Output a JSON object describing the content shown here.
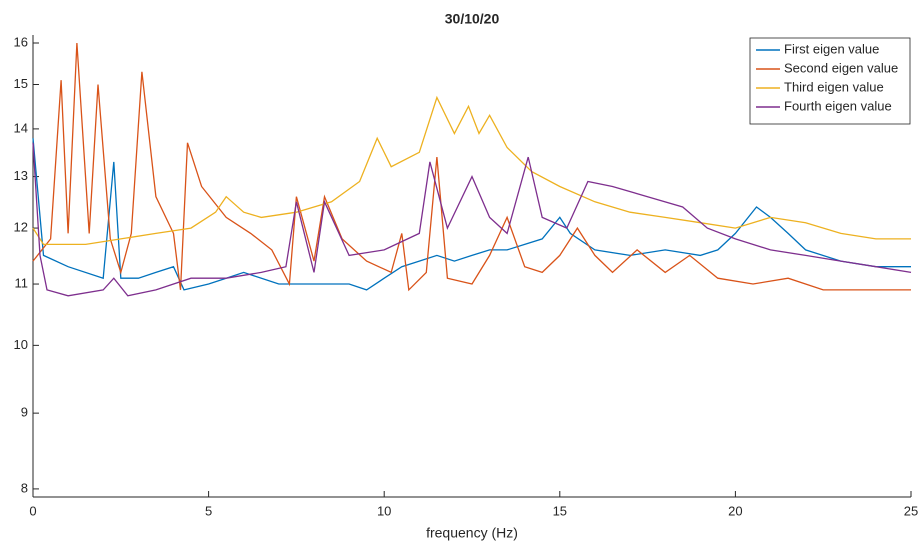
{
  "chart_data": {
    "type": "line",
    "title": "30/10/20",
    "x_label": "frequency (Hz)",
    "xlim": [
      0,
      25
    ],
    "xticks": [
      0,
      5,
      10,
      15,
      20,
      25
    ],
    "ylim": [
      7.9,
      16.2
    ],
    "yticks": [
      8,
      9,
      10,
      11,
      12,
      13,
      14,
      15,
      16
    ],
    "y_scale": "log",
    "legend": "northeast",
    "series": [
      {
        "name": "First eigen value",
        "color": "#0072bd",
        "x": [
          0,
          0.3,
          1,
          2,
          2.3,
          2.5,
          3,
          3.5,
          4,
          4.3,
          5,
          5.5,
          6,
          7,
          8,
          9,
          9.5,
          10,
          10.5,
          11,
          11.5,
          12,
          12.5,
          13,
          13.5,
          14,
          14.5,
          15,
          15.3,
          16,
          17,
          18,
          19,
          19.5,
          20,
          20.6,
          21,
          21.5,
          22,
          23,
          24,
          25
        ],
        "values": [
          13.8,
          11.5,
          11.3,
          11.1,
          13.3,
          11.1,
          11.1,
          11.2,
          11.3,
          10.9,
          11.0,
          11.1,
          11.2,
          11.0,
          11.0,
          11.0,
          10.9,
          11.1,
          11.3,
          11.4,
          11.5,
          11.4,
          11.5,
          11.6,
          11.6,
          11.7,
          11.8,
          12.2,
          11.9,
          11.6,
          11.5,
          11.6,
          11.5,
          11.6,
          11.9,
          12.4,
          12.2,
          11.9,
          11.6,
          11.4,
          11.3,
          11.3
        ]
      },
      {
        "name": "Second eigen value",
        "color": "#d95319",
        "x": [
          0,
          0.5,
          0.8,
          1.0,
          1.25,
          1.6,
          1.85,
          2.2,
          2.5,
          2.8,
          3.1,
          3.5,
          4.0,
          4.2,
          4.4,
          4.8,
          5.5,
          6.2,
          6.8,
          7.3,
          7.5,
          8.0,
          8.3,
          8.8,
          9.5,
          10.2,
          10.5,
          10.7,
          11.2,
          11.5,
          11.8,
          12.5,
          13.0,
          13.5,
          14,
          14.5,
          15,
          15.5,
          16,
          16.5,
          17.2,
          18,
          18.7,
          19.5,
          20.5,
          21.5,
          22.5,
          23.5,
          25
        ],
        "values": [
          11.4,
          11.8,
          15.1,
          11.9,
          16.0,
          11.9,
          15.0,
          11.8,
          11.2,
          11.9,
          15.3,
          12.6,
          11.9,
          10.9,
          13.7,
          12.8,
          12.2,
          11.9,
          11.6,
          11.0,
          12.6,
          11.4,
          12.6,
          11.8,
          11.4,
          11.2,
          11.9,
          10.9,
          11.2,
          13.4,
          11.1,
          11.0,
          11.5,
          12.2,
          11.3,
          11.2,
          11.5,
          12.0,
          11.5,
          11.2,
          11.6,
          11.2,
          11.5,
          11.1,
          11.0,
          11.1,
          10.9,
          10.9,
          10.9
        ]
      },
      {
        "name": "Third eigen value",
        "color": "#edb120",
        "x": [
          0,
          0.3,
          1.5,
          2.5,
          3.5,
          4.5,
          5.2,
          5.5,
          6,
          6.5,
          7.5,
          8.5,
          9.3,
          9.8,
          10.2,
          11,
          11.5,
          12,
          12.4,
          12.7,
          13,
          13.5,
          14.2,
          15,
          16,
          17,
          18,
          19,
          20,
          20.5,
          21,
          22,
          23,
          24,
          25
        ],
        "values": [
          12.0,
          11.7,
          11.7,
          11.8,
          11.9,
          12.0,
          12.3,
          12.6,
          12.3,
          12.2,
          12.3,
          12.5,
          12.9,
          13.8,
          13.2,
          13.5,
          14.7,
          13.9,
          14.5,
          13.9,
          14.3,
          13.6,
          13.1,
          12.8,
          12.5,
          12.3,
          12.2,
          12.1,
          12.0,
          12.1,
          12.2,
          12.1,
          11.9,
          11.8,
          11.8
        ]
      },
      {
        "name": "Fourth eigen value",
        "color": "#7e2f8e",
        "x": [
          0,
          0.2,
          0.4,
          1,
          2,
          2.3,
          2.7,
          3.5,
          4.5,
          5.5,
          6.5,
          7.2,
          7.5,
          8,
          8.3,
          9,
          10,
          11,
          11.3,
          11.8,
          12.5,
          13.0,
          13.5,
          14.1,
          14.5,
          15.2,
          15.8,
          16.5,
          17.5,
          18.5,
          19.2,
          20,
          21,
          22,
          23,
          24,
          25
        ],
        "values": [
          13.7,
          11.5,
          10.9,
          10.8,
          10.9,
          11.1,
          10.8,
          10.9,
          11.1,
          11.1,
          11.2,
          11.3,
          12.5,
          11.2,
          12.5,
          11.5,
          11.6,
          11.9,
          13.3,
          12.0,
          13.0,
          12.2,
          11.9,
          13.4,
          12.2,
          12.0,
          12.9,
          12.8,
          12.6,
          12.4,
          12.0,
          11.8,
          11.6,
          11.5,
          11.4,
          11.3,
          11.2
        ]
      }
    ]
  }
}
